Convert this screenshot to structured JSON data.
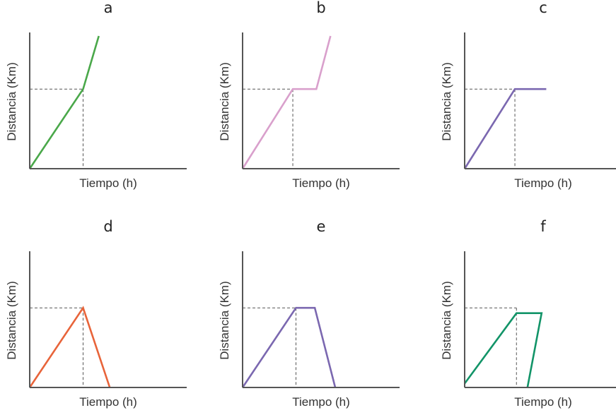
{
  "chart_data": [
    {
      "type": "line",
      "title": "a",
      "xlabel": "Tiempo (h)",
      "ylabel": "Distancia (Km)",
      "color": "#4aa84a",
      "grid": false,
      "xlim": [
        0,
        10
      ],
      "ylim": [
        0,
        10
      ],
      "x": [
        0,
        3.4,
        4.4
      ],
      "y": [
        0,
        6,
        10
      ],
      "guide": {
        "x": 3.4,
        "y": 6
      }
    },
    {
      "type": "line",
      "title": "b",
      "xlabel": "Tiempo (h)",
      "ylabel": "Distancia (Km)",
      "color": "#d9a0cc",
      "grid": false,
      "xlim": [
        0,
        10
      ],
      "ylim": [
        0,
        10
      ],
      "x": [
        0,
        3.2,
        4.7,
        5.6
      ],
      "y": [
        0,
        6,
        6,
        10
      ],
      "guide": {
        "x": 3.2,
        "y": 6
      }
    },
    {
      "type": "line",
      "title": "c",
      "xlabel": "Tiempo (h)",
      "ylabel": "Distancia (Km)",
      "color": "#7b68b0",
      "grid": false,
      "xlim": [
        0,
        10
      ],
      "ylim": [
        0,
        10
      ],
      "x": [
        0,
        3.2,
        5.2
      ],
      "y": [
        0,
        6,
        6
      ],
      "guide": {
        "x": 3.2,
        "y": 6
      }
    },
    {
      "type": "line",
      "title": "d",
      "xlabel": "Tiempo (h)",
      "ylabel": "Distancia (Km)",
      "color": "#e8643a",
      "grid": false,
      "xlim": [
        0,
        10
      ],
      "ylim": [
        0,
        10
      ],
      "x": [
        0,
        3.4,
        5.1
      ],
      "y": [
        0,
        6,
        0
      ],
      "guide": {
        "x": 3.4,
        "y": 6
      }
    },
    {
      "type": "line",
      "title": "e",
      "xlabel": "Tiempo (h)",
      "ylabel": "Distancia (Km)",
      "color": "#7b68b0",
      "grid": false,
      "xlim": [
        0,
        10
      ],
      "ylim": [
        0,
        10
      ],
      "x": [
        0,
        3.4,
        4.6,
        5.9
      ],
      "y": [
        0,
        6,
        6,
        0
      ],
      "guide": {
        "x": 3.4,
        "y": 6
      }
    },
    {
      "type": "line",
      "title": "f",
      "xlabel": "Tiempo (h)",
      "ylabel": "Distancia (Km)",
      "color": "#129468",
      "grid": false,
      "xlim": [
        0,
        10
      ],
      "ylim": [
        0,
        10
      ],
      "x": [
        0,
        3.3,
        4.9,
        4.0
      ],
      "y": [
        0.3,
        5.6,
        5.6,
        0
      ],
      "guide": {
        "x": 3.3,
        "y": 6
      }
    }
  ]
}
